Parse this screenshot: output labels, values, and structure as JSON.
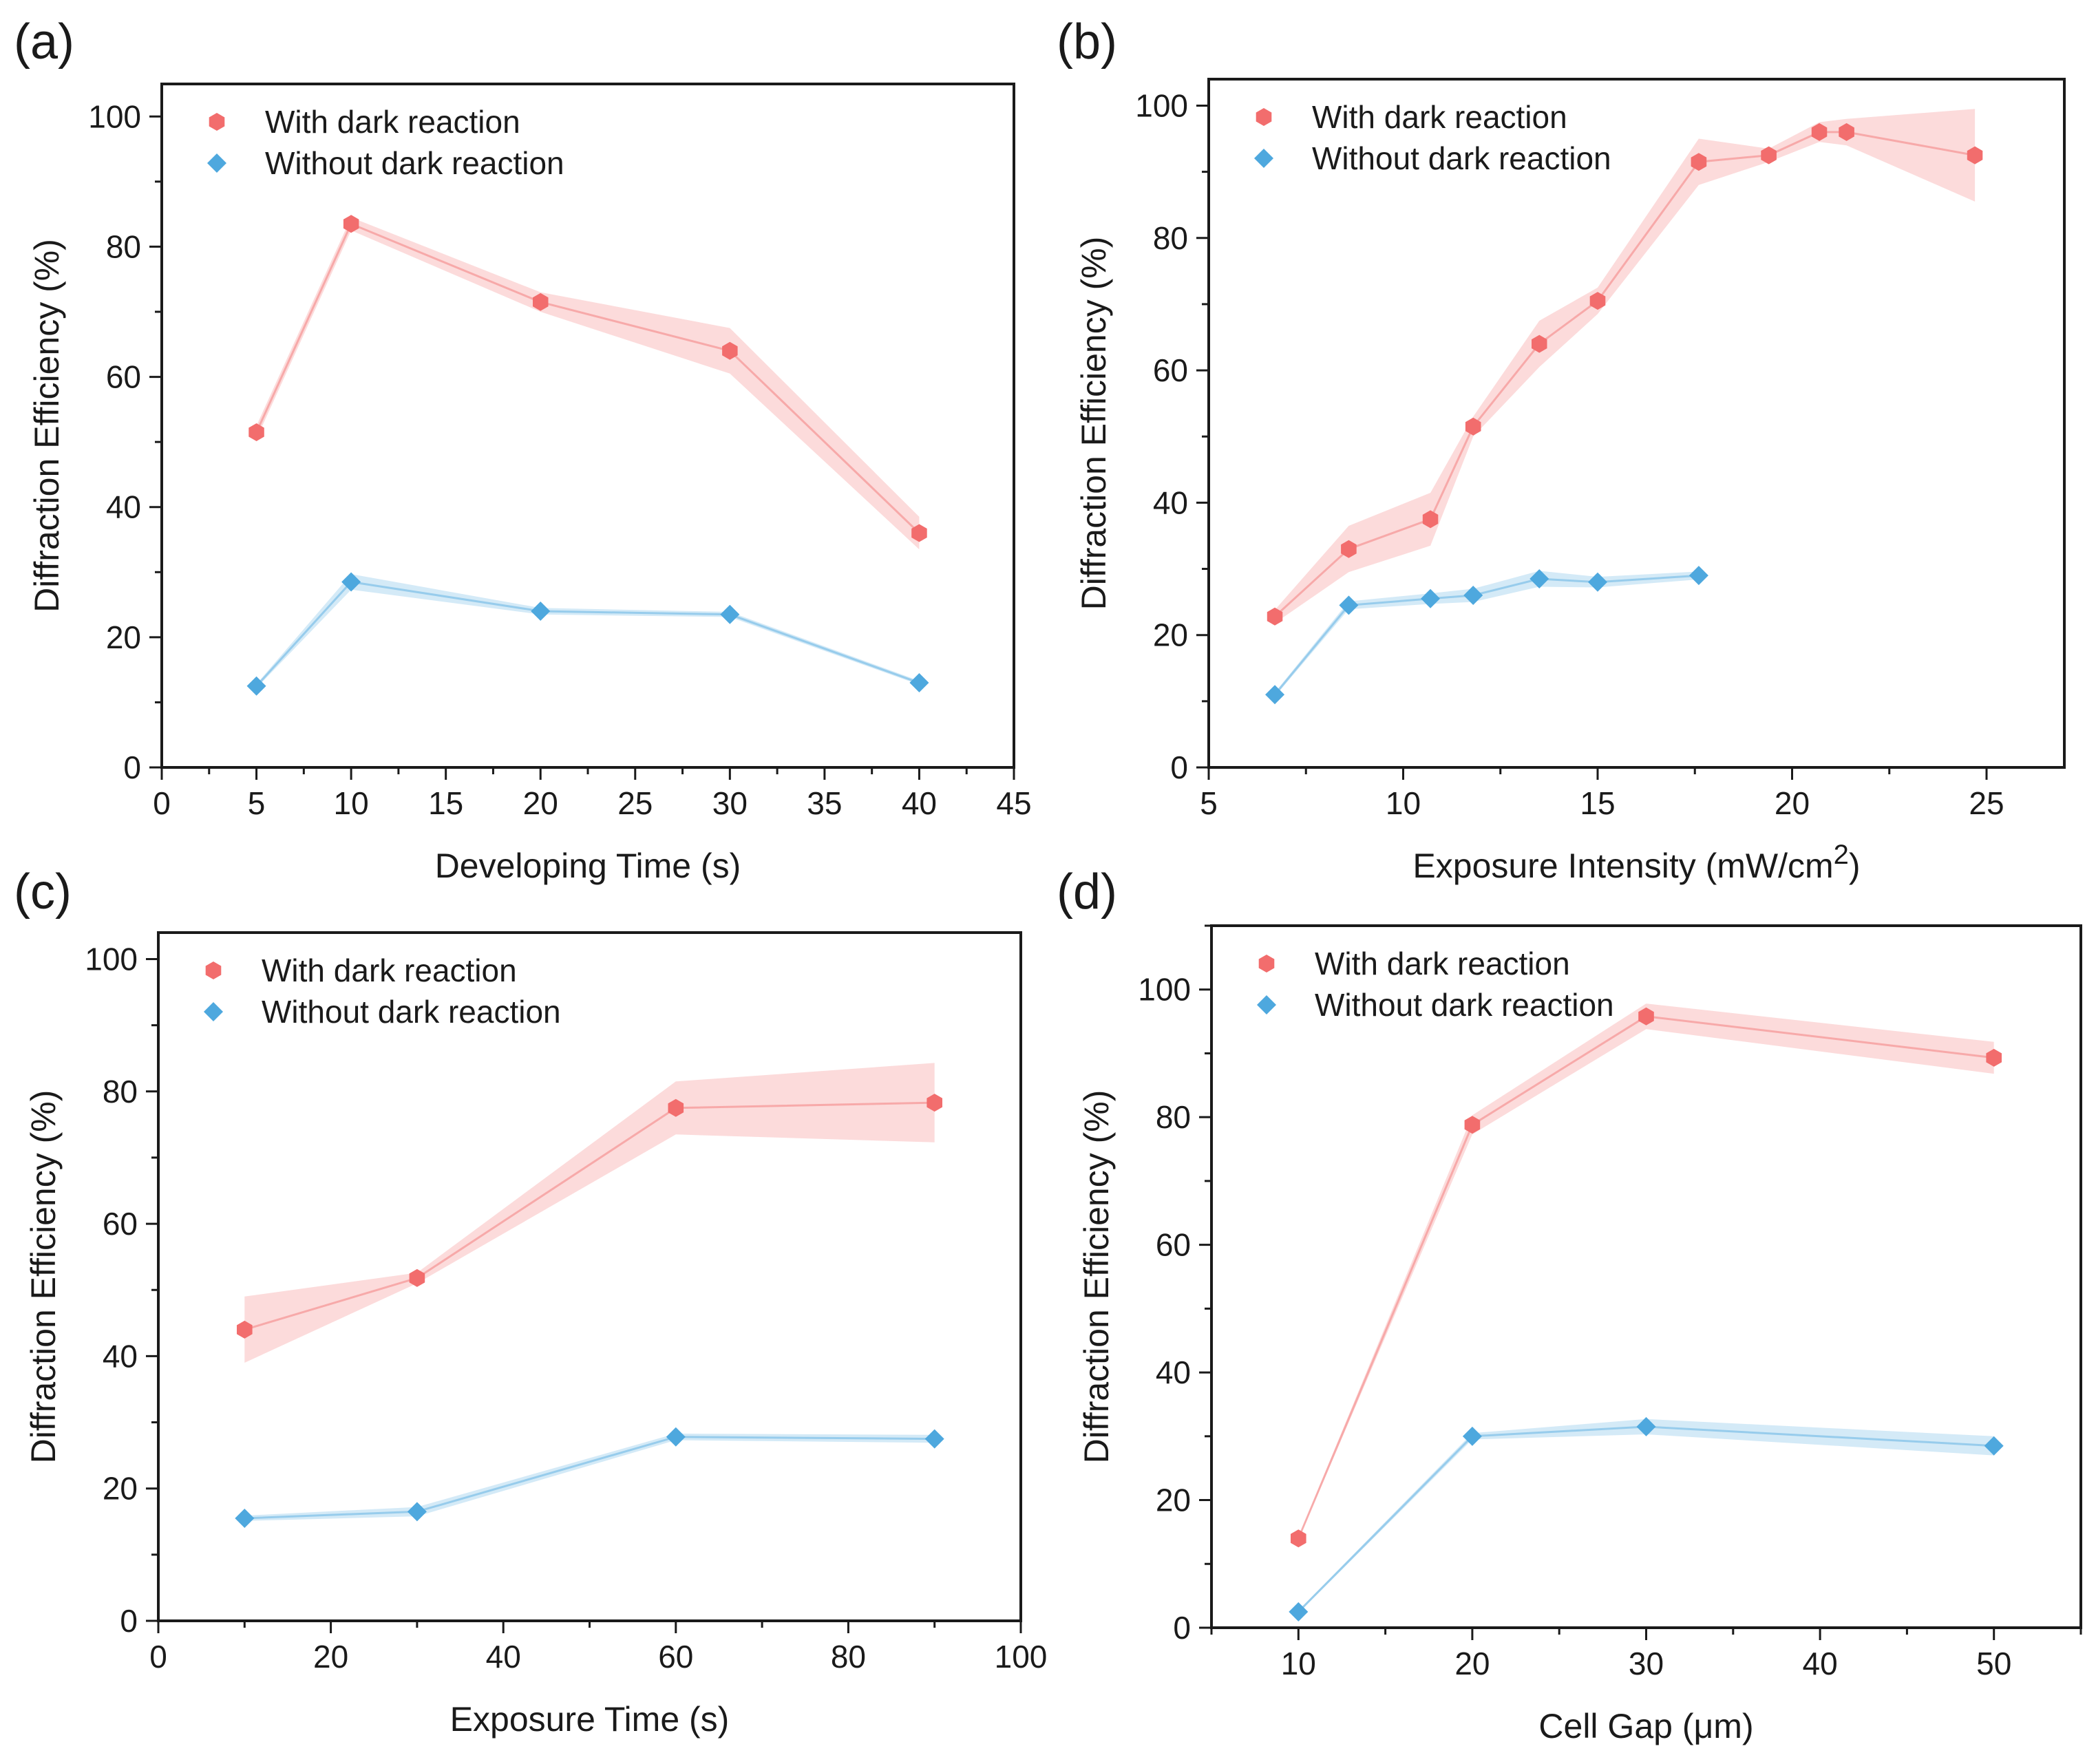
{
  "colors": {
    "with": "#f26d6d",
    "with_band": "#fcd5d5",
    "without": "#4ea8de",
    "without_band": "#cde6f6",
    "axis": "#1a1a1a"
  },
  "chart_data": [
    {
      "type": "line",
      "panel_label": "(a)",
      "title": "",
      "xlabel": "Developing Time (s)",
      "xlabel_sup": "",
      "xlabel_end": "",
      "ylabel": "Diffraction Efficiency (%)",
      "xlim": [
        0,
        45
      ],
      "ylim": [
        0,
        105
      ],
      "xticks": [
        0,
        5,
        10,
        15,
        20,
        25,
        30,
        35,
        40,
        45
      ],
      "yticks": [
        0,
        20,
        40,
        60,
        80,
        100
      ],
      "legend": [
        "With dark reaction",
        "Without dark reaction"
      ],
      "legend_position": "top-left",
      "series": [
        {
          "name": "With dark reaction",
          "marker": "hexagon",
          "x": [
            5,
            10,
            20,
            30,
            40
          ],
          "y": [
            51.5,
            83.5,
            71.5,
            64,
            36
          ],
          "err": [
            1,
            1,
            1.5,
            3.5,
            2.5
          ]
        },
        {
          "name": "Without dark reaction",
          "marker": "diamond",
          "x": [
            5,
            10,
            20,
            30,
            40
          ],
          "y": [
            12.5,
            28.5,
            24,
            23.5,
            13
          ],
          "err": [
            0.3,
            1.2,
            0.5,
            0.4,
            0.3
          ]
        }
      ]
    },
    {
      "type": "line",
      "panel_label": "(b)",
      "title": "",
      "xlabel": "Exposure Intensity (mW/cm",
      "xlabel_sup": "2",
      "xlabel_end": ")",
      "ylabel": "Diffraction Efficiency (%)",
      "xlim": [
        5,
        27
      ],
      "ylim": [
        0,
        104
      ],
      "xticks": [
        5,
        10,
        15,
        20,
        25
      ],
      "yticks": [
        0,
        20,
        40,
        60,
        80,
        100
      ],
      "legend": [
        "With dark reaction",
        "Without dark reaction"
      ],
      "legend_position": "top-left",
      "series": [
        {
          "name": "With dark reaction",
          "marker": "hexagon",
          "x": [
            6.7,
            8.6,
            10.7,
            11.8,
            13.5,
            15,
            17.6,
            19.4,
            20.7,
            21.4,
            24.7
          ],
          "y": [
            22.8,
            33,
            37.5,
            51.5,
            64,
            70.5,
            91.5,
            92.5,
            96,
            96,
            92.5
          ],
          "err": [
            1,
            3.5,
            4,
            1.5,
            3.5,
            2,
            3.5,
            1,
            1.5,
            2,
            7
          ]
        },
        {
          "name": "Without dark reaction",
          "marker": "diamond",
          "x": [
            6.7,
            8.6,
            10.7,
            11.8,
            13.5,
            15,
            17.6
          ],
          "y": [
            11,
            24.5,
            25.5,
            26,
            28.5,
            28,
            29
          ],
          "err": [
            0.3,
            0.6,
            0.8,
            1,
            1.2,
            0.8,
            0.6
          ]
        }
      ]
    },
    {
      "type": "line",
      "panel_label": "(c)",
      "title": "",
      "xlabel": "Exposure Time (s)",
      "xlabel_sup": "",
      "xlabel_end": "",
      "ylabel": "Diffraction Efficiency (%)",
      "xlim": [
        0,
        100
      ],
      "ylim": [
        0,
        104
      ],
      "xticks": [
        0,
        20,
        40,
        60,
        80,
        100
      ],
      "yticks": [
        0,
        20,
        40,
        60,
        80,
        100
      ],
      "legend": [
        "With dark reaction",
        "Without dark reaction"
      ],
      "legend_position": "top-left",
      "series": [
        {
          "name": "With dark reaction",
          "marker": "hexagon",
          "x": [
            10,
            30,
            60,
            90
          ],
          "y": [
            44,
            51.8,
            77.5,
            78.3
          ],
          "err": [
            5,
            0.8,
            4,
            6
          ]
        },
        {
          "name": "Without dark reaction",
          "marker": "diamond",
          "x": [
            10,
            30,
            60,
            90
          ],
          "y": [
            15.5,
            16.5,
            27.8,
            27.5
          ],
          "err": [
            0.4,
            0.7,
            0.5,
            0.6
          ]
        }
      ]
    },
    {
      "type": "line",
      "panel_label": "(d)",
      "title": "",
      "xlabel": "Cell Gap (μm)",
      "xlabel_sup": "",
      "xlabel_end": "",
      "ylabel": "Diffraction Efficiency (%)",
      "xlim": [
        5,
        55
      ],
      "ylim": [
        0,
        110
      ],
      "xticks": [
        10,
        20,
        30,
        40,
        50
      ],
      "yticks": [
        0,
        20,
        40,
        60,
        80,
        100
      ],
      "legend": [
        "With dark reaction",
        "Without dark reaction"
      ],
      "legend_position": "top-left",
      "series": [
        {
          "name": "With dark reaction",
          "marker": "hexagon",
          "x": [
            10,
            20,
            30,
            50
          ],
          "y": [
            14,
            78.8,
            95.8,
            89.3
          ],
          "err": [
            0.2,
            1.5,
            2,
            2.5
          ]
        },
        {
          "name": "Without dark reaction",
          "marker": "diamond",
          "x": [
            10,
            20,
            30,
            50
          ],
          "y": [
            2.5,
            30,
            31.5,
            28.5
          ],
          "err": [
            0.2,
            0.5,
            1.2,
            1.5
          ]
        }
      ]
    }
  ]
}
